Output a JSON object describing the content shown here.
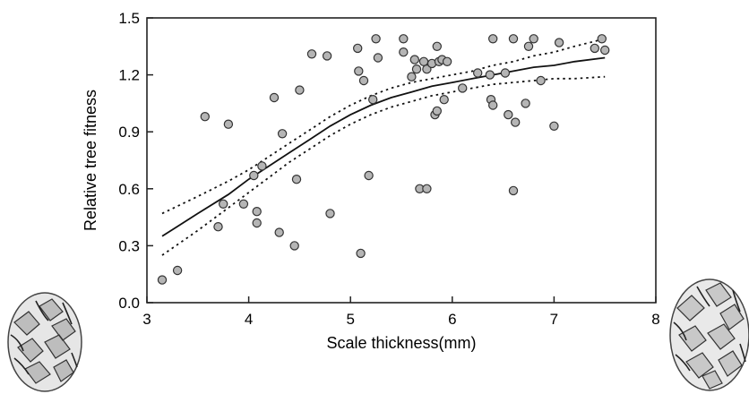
{
  "chart_data": {
    "type": "scatter",
    "title": "",
    "xlabel": "Scale thickness(mm)",
    "ylabel": "Relative tree fitness",
    "xlim": [
      3,
      8
    ],
    "ylim": [
      0,
      1.5
    ],
    "x_ticks": [
      "3",
      "4",
      "5",
      "6",
      "7",
      "8"
    ],
    "y_ticks": [
      "0.0",
      "0.3",
      "0.6",
      "0.9",
      "1.2",
      "1.5"
    ],
    "grid": false,
    "legend": "none",
    "colors": {
      "points_fill": "#b5b5b5",
      "points_stroke": "#333333",
      "fit_line": "#111111",
      "ci_line": "#111111",
      "axis": "#222222"
    },
    "series": [
      {
        "kind": "points",
        "points": [
          [
            3.15,
            0.12
          ],
          [
            3.3,
            0.17
          ],
          [
            3.57,
            0.98
          ],
          [
            3.7,
            0.4
          ],
          [
            3.75,
            0.52
          ],
          [
            3.8,
            0.94
          ],
          [
            3.95,
            0.52
          ],
          [
            4.05,
            0.67
          ],
          [
            4.08,
            0.48
          ],
          [
            4.08,
            0.42
          ],
          [
            4.13,
            0.72
          ],
          [
            4.25,
            1.08
          ],
          [
            4.3,
            0.37
          ],
          [
            4.33,
            0.89
          ],
          [
            4.45,
            0.3
          ],
          [
            4.47,
            0.65
          ],
          [
            4.5,
            1.12
          ],
          [
            4.62,
            1.31
          ],
          [
            4.77,
            1.3
          ],
          [
            4.8,
            0.47
          ],
          [
            5.07,
            1.34
          ],
          [
            5.08,
            1.22
          ],
          [
            5.1,
            0.26
          ],
          [
            5.13,
            1.17
          ],
          [
            5.18,
            0.67
          ],
          [
            5.22,
            1.07
          ],
          [
            5.25,
            1.39
          ],
          [
            5.27,
            1.29
          ],
          [
            5.52,
            1.39
          ],
          [
            5.52,
            1.32
          ],
          [
            5.6,
            1.19
          ],
          [
            5.63,
            1.28
          ],
          [
            5.65,
            1.23
          ],
          [
            5.68,
            0.6
          ],
          [
            5.72,
            1.27
          ],
          [
            5.75,
            0.6
          ],
          [
            5.75,
            1.23
          ],
          [
            5.8,
            1.26
          ],
          [
            5.83,
            0.99
          ],
          [
            5.85,
            1.35
          ],
          [
            5.85,
            1.01
          ],
          [
            5.87,
            1.27
          ],
          [
            5.9,
            1.28
          ],
          [
            5.92,
            1.07
          ],
          [
            5.95,
            1.27
          ],
          [
            6.1,
            1.13
          ],
          [
            6.25,
            1.21
          ],
          [
            6.37,
            1.2
          ],
          [
            6.38,
            1.07
          ],
          [
            6.4,
            1.39
          ],
          [
            6.4,
            1.04
          ],
          [
            6.52,
            1.21
          ],
          [
            6.55,
            0.99
          ],
          [
            6.6,
            1.39
          ],
          [
            6.62,
            0.95
          ],
          [
            6.6,
            0.59
          ],
          [
            6.72,
            1.05
          ],
          [
            6.75,
            1.35
          ],
          [
            6.8,
            1.39
          ],
          [
            6.87,
            1.17
          ],
          [
            7.0,
            0.93
          ],
          [
            7.05,
            1.37
          ],
          [
            7.4,
            1.34
          ],
          [
            7.47,
            1.39
          ],
          [
            7.5,
            1.33
          ]
        ]
      },
      {
        "kind": "fit",
        "points": [
          [
            3.15,
            0.35
          ],
          [
            3.5,
            0.47
          ],
          [
            3.8,
            0.57
          ],
          [
            4.0,
            0.65
          ],
          [
            4.2,
            0.72
          ],
          [
            4.4,
            0.79
          ],
          [
            4.6,
            0.86
          ],
          [
            4.8,
            0.93
          ],
          [
            5.0,
            0.99
          ],
          [
            5.2,
            1.04
          ],
          [
            5.4,
            1.08
          ],
          [
            5.6,
            1.11
          ],
          [
            5.8,
            1.14
          ],
          [
            6.0,
            1.16
          ],
          [
            6.2,
            1.18
          ],
          [
            6.4,
            1.2
          ],
          [
            6.6,
            1.22
          ],
          [
            6.8,
            1.24
          ],
          [
            7.0,
            1.25
          ],
          [
            7.2,
            1.27
          ],
          [
            7.5,
            1.29
          ]
        ]
      },
      {
        "kind": "ci-upper",
        "points": [
          [
            3.15,
            0.47
          ],
          [
            3.5,
            0.56
          ],
          [
            3.8,
            0.64
          ],
          [
            4.0,
            0.7
          ],
          [
            4.2,
            0.77
          ],
          [
            4.4,
            0.84
          ],
          [
            4.6,
            0.91
          ],
          [
            4.8,
            0.98
          ],
          [
            5.0,
            1.04
          ],
          [
            5.2,
            1.09
          ],
          [
            5.4,
            1.13
          ],
          [
            5.6,
            1.16
          ],
          [
            5.8,
            1.18
          ],
          [
            6.0,
            1.2
          ],
          [
            6.2,
            1.22
          ],
          [
            6.4,
            1.25
          ],
          [
            6.6,
            1.27
          ],
          [
            6.8,
            1.3
          ],
          [
            7.0,
            1.32
          ],
          [
            7.2,
            1.35
          ],
          [
            7.5,
            1.39
          ]
        ]
      },
      {
        "kind": "ci-lower",
        "points": [
          [
            3.15,
            0.25
          ],
          [
            3.5,
            0.38
          ],
          [
            3.8,
            0.5
          ],
          [
            4.0,
            0.58
          ],
          [
            4.2,
            0.66
          ],
          [
            4.4,
            0.74
          ],
          [
            4.6,
            0.81
          ],
          [
            4.8,
            0.88
          ],
          [
            5.0,
            0.94
          ],
          [
            5.2,
            0.99
          ],
          [
            5.4,
            1.03
          ],
          [
            5.6,
            1.06
          ],
          [
            5.8,
            1.09
          ],
          [
            6.0,
            1.11
          ],
          [
            6.2,
            1.13
          ],
          [
            6.4,
            1.15
          ],
          [
            6.6,
            1.16
          ],
          [
            6.8,
            1.17
          ],
          [
            7.0,
            1.18
          ],
          [
            7.2,
            1.18
          ],
          [
            7.5,
            1.19
          ]
        ]
      }
    ]
  }
}
